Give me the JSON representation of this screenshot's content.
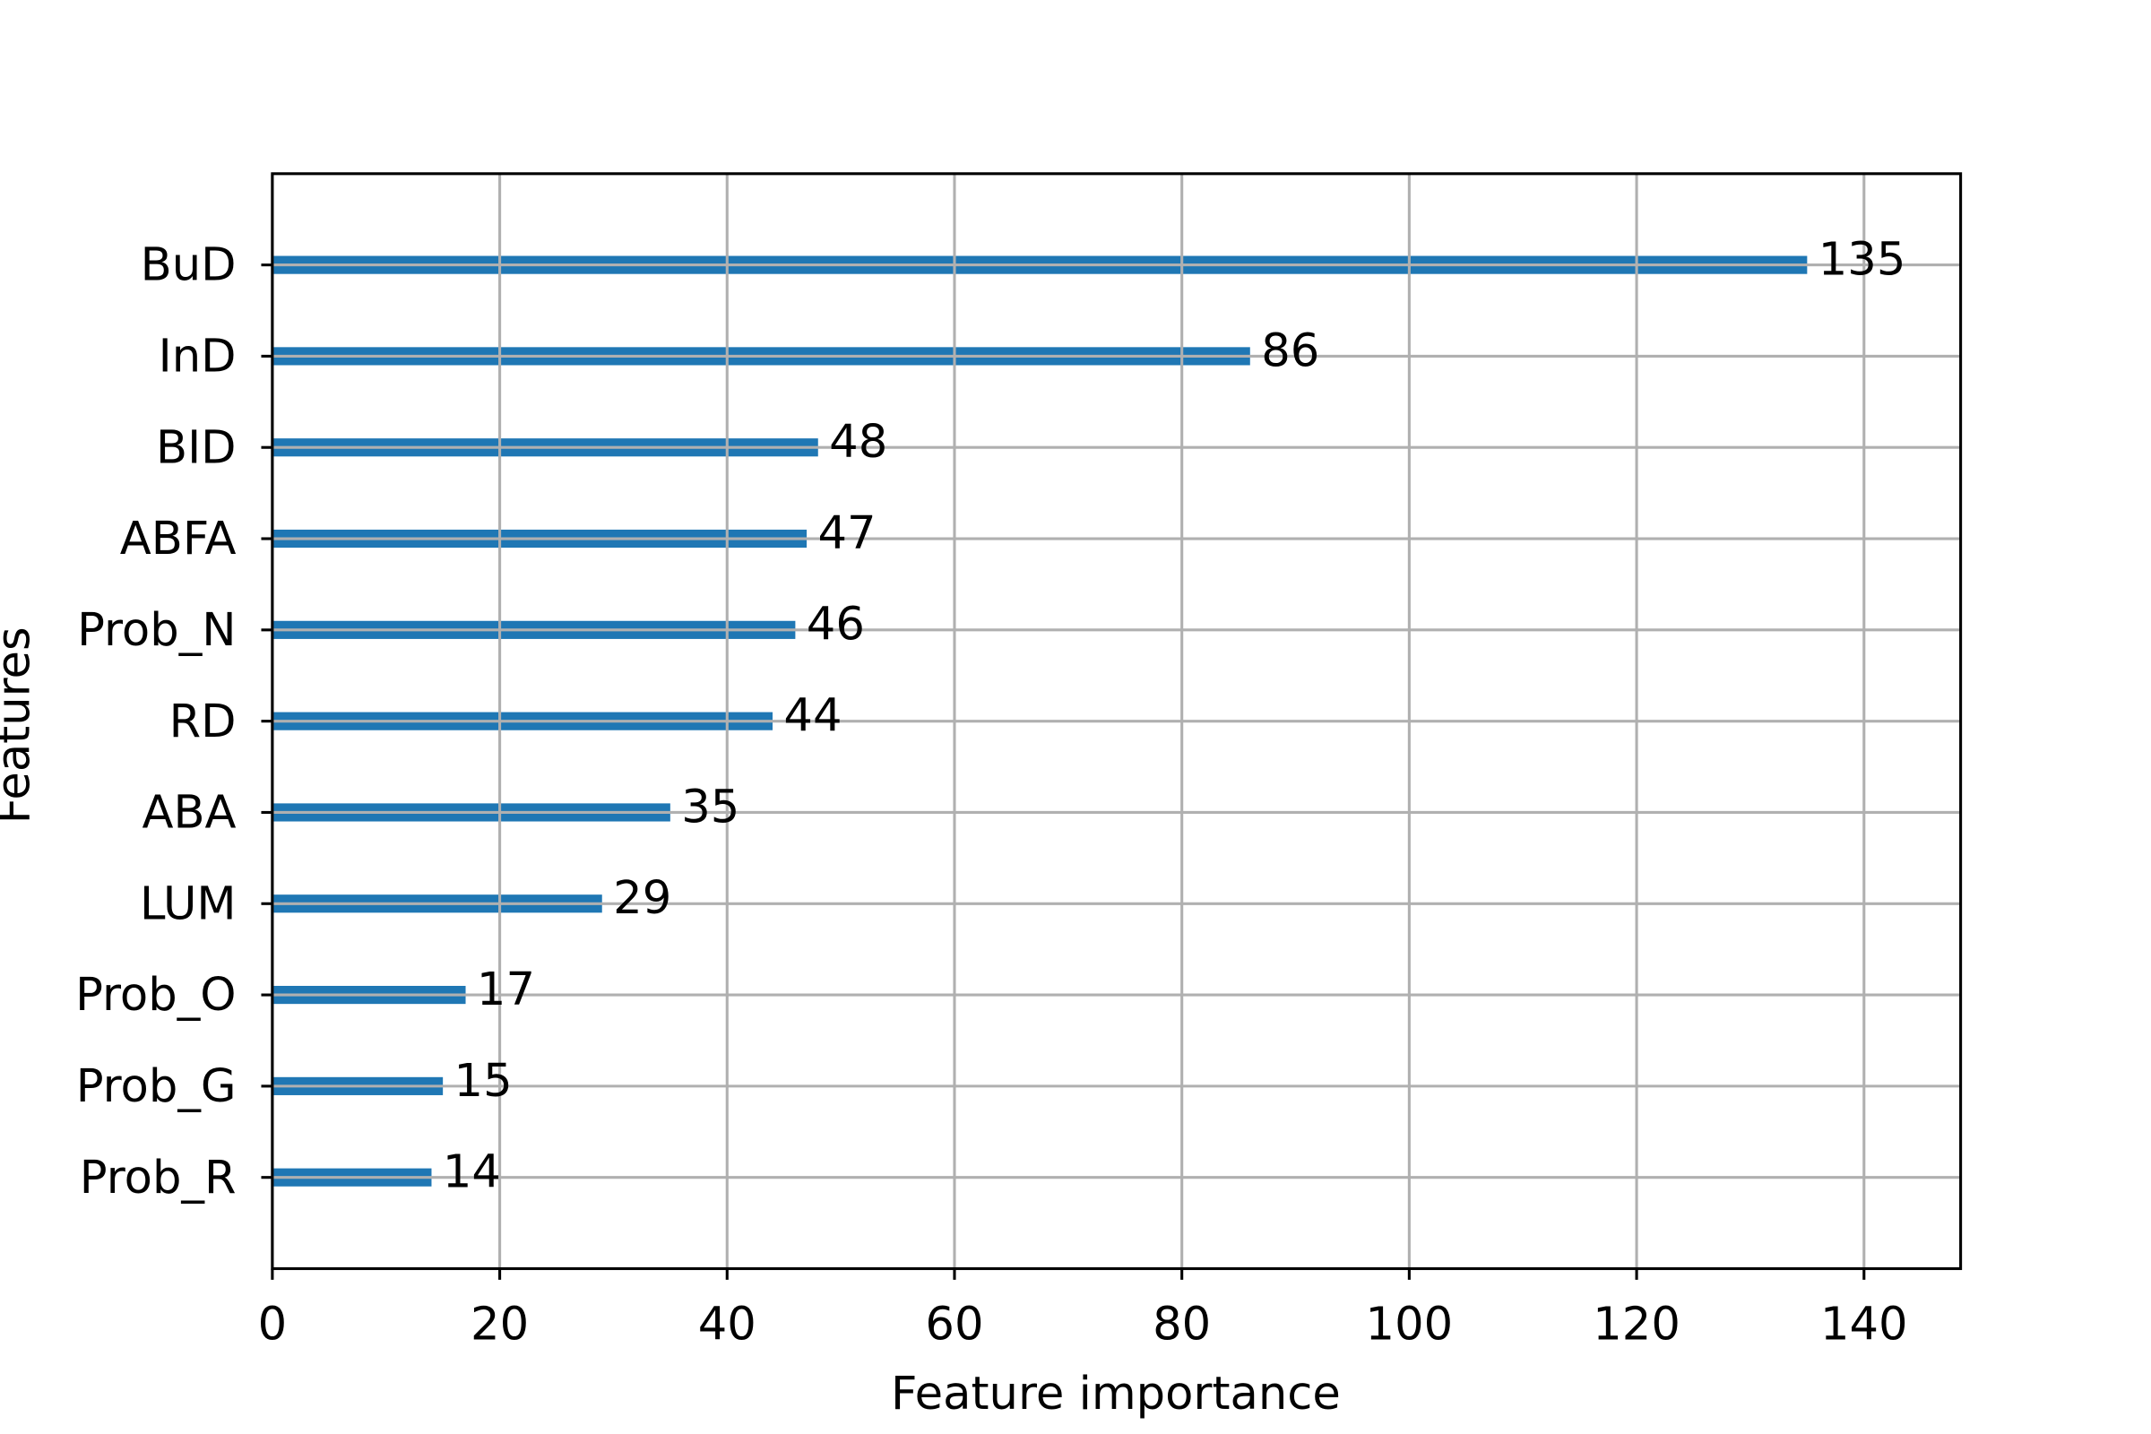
{
  "chart_data": {
    "type": "bar",
    "orientation": "horizontal",
    "xlabel": "Feature importance",
    "ylabel": "Features",
    "categories": [
      "BuD",
      "InD",
      "BID",
      "ABFA",
      "Prob_N",
      "RD",
      "ABA",
      "LUM",
      "Prob_O",
      "Prob_G",
      "Prob_R"
    ],
    "values": [
      135,
      86,
      48,
      47,
      46,
      44,
      35,
      29,
      17,
      15,
      14
    ],
    "color": "#1f77b4",
    "xlim": [
      0,
      148.5
    ],
    "xticks": [
      0,
      20,
      40,
      60,
      80,
      100,
      120,
      140
    ],
    "grid": true
  }
}
